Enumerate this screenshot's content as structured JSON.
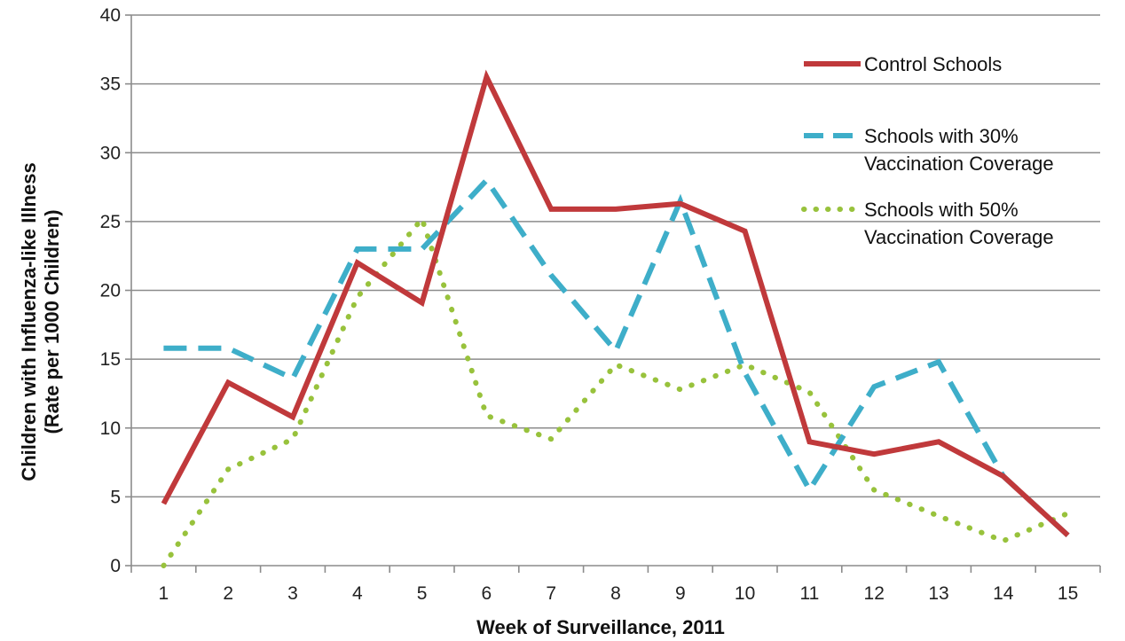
{
  "chart_data": {
    "type": "line",
    "xlabel": "Week of Surveillance, 2011",
    "ylabel": "Children with Influenza-like Illness",
    "ylabel_line2": "(Rate per 1000 Children)",
    "categories": [
      "1",
      "2",
      "3",
      "4",
      "5",
      "6",
      "7",
      "8",
      "9",
      "10",
      "11",
      "12",
      "13",
      "14",
      "15"
    ],
    "ylim": [
      0,
      40
    ],
    "yticks": [
      0,
      5,
      10,
      15,
      20,
      25,
      30,
      35,
      40
    ],
    "grid": true,
    "legend_position": "right",
    "series": [
      {
        "name": "Control Schools",
        "style": "solid",
        "color": "#c0393b",
        "values": [
          4.5,
          13.3,
          10.8,
          22.0,
          19.1,
          35.5,
          25.9,
          25.9,
          26.3,
          24.3,
          9.0,
          8.1,
          9.0,
          6.5,
          2.2
        ]
      },
      {
        "name": "Schools with 30%",
        "name_line2": "Vaccination Coverage",
        "style": "dashed",
        "color": "#3eaec9",
        "values": [
          15.8,
          15.8,
          13.6,
          23.0,
          23.0,
          28.0,
          21.1,
          15.6,
          26.5,
          14.0,
          5.5,
          13.0,
          14.8,
          6.5,
          2.2
        ]
      },
      {
        "name": "Schools with 50%",
        "name_line2": "Vaccination Coverage",
        "style": "dotted",
        "color": "#98c23c",
        "values": [
          0.0,
          7.0,
          9.2,
          19.5,
          25.2,
          10.9,
          9.2,
          14.6,
          12.8,
          14.6,
          12.6,
          5.5,
          3.6,
          1.8,
          3.8
        ]
      }
    ]
  }
}
